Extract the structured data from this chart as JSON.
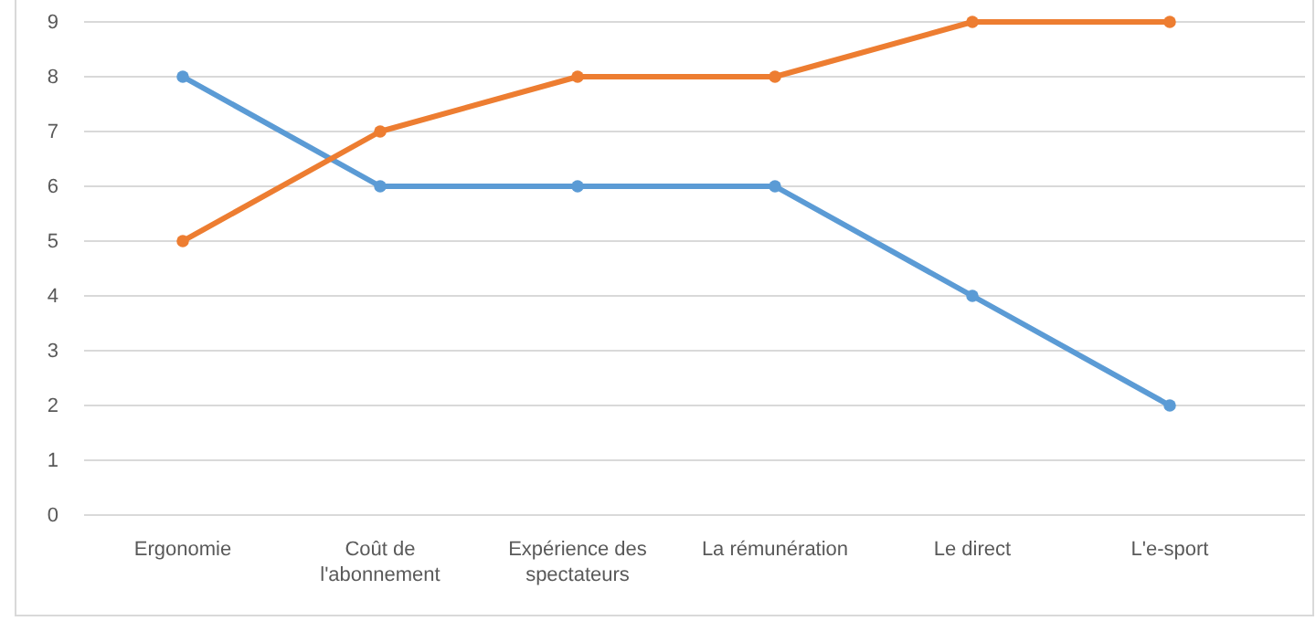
{
  "chart_data": {
    "type": "line",
    "categories": [
      "Ergonomie",
      "Coût de l'abonnement",
      "Expérience des spectateurs",
      "La rémunération",
      "Le direct",
      "L'e-sport"
    ],
    "series": [
      {
        "color": "#5b9bd5",
        "values": [
          8,
          6,
          6,
          6,
          4,
          2
        ]
      },
      {
        "color": "#ed7d31",
        "values": [
          5,
          7,
          8,
          8,
          9,
          9
        ]
      }
    ],
    "ylim": [
      0,
      9
    ],
    "yticks": [
      0,
      1,
      2,
      3,
      4,
      5,
      6,
      7,
      8,
      9
    ],
    "grid": "y",
    "marker": "circle",
    "line_style": "solid"
  }
}
